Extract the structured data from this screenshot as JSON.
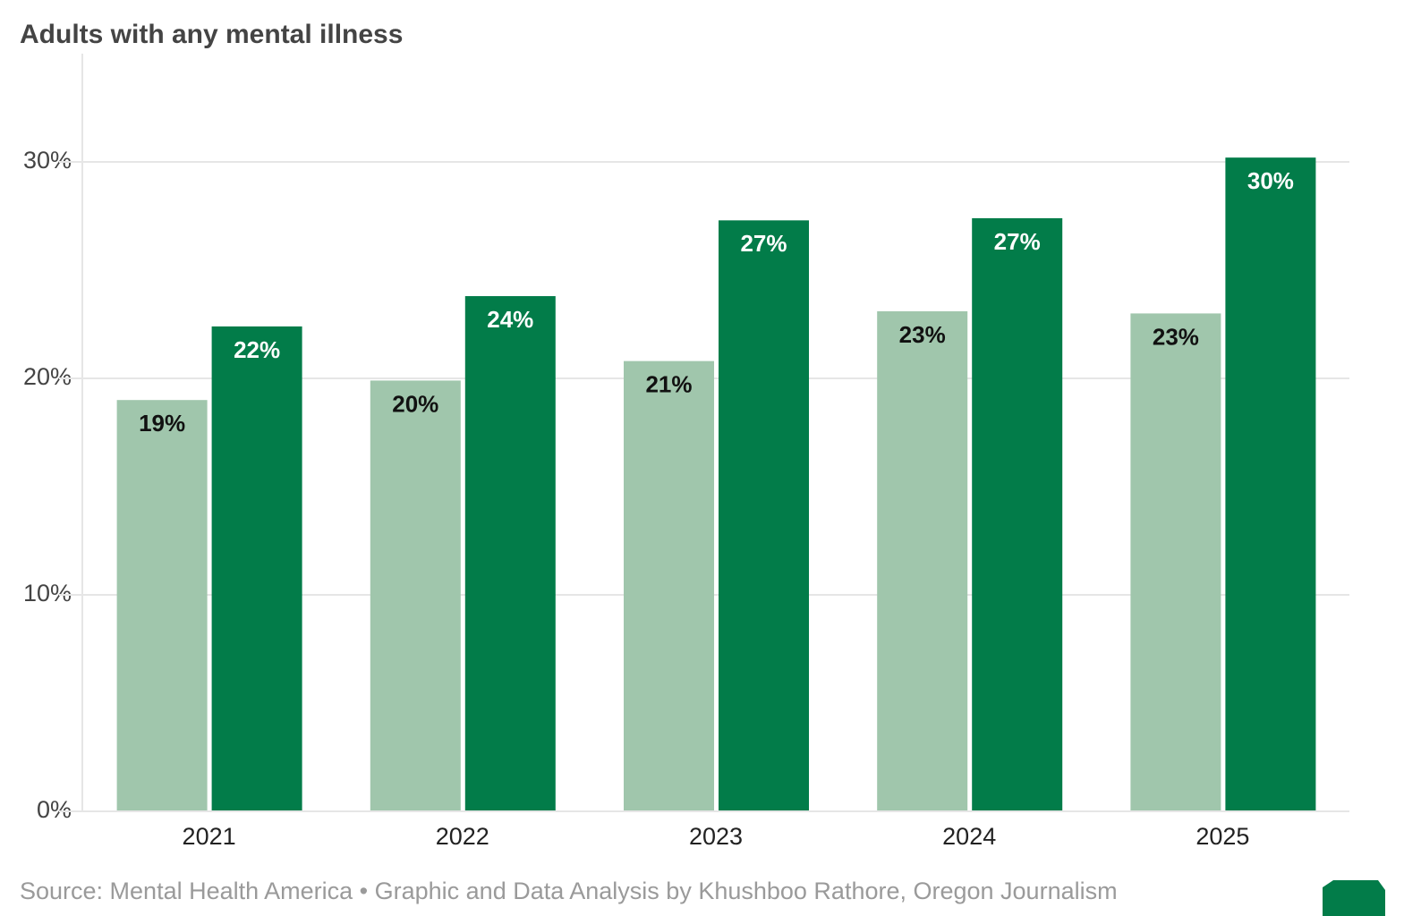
{
  "chart_data": {
    "type": "bar",
    "title": "Adults with any mental illness",
    "source": "Source: Mental Health America • Graphic and Data Analysis by Khushboo Rathore, Oregon Journalism",
    "categories": [
      "2021",
      "2022",
      "2023",
      "2024",
      "2025"
    ],
    "series": [
      {
        "color": "#a0c6ac",
        "values": [
          19.0,
          19.9,
          20.8,
          23.1,
          23.0
        ],
        "value_labels": [
          "19%",
          "20%",
          "21%",
          "23%",
          "23%"
        ]
      },
      {
        "color": "#027c49",
        "values": [
          22.4,
          23.8,
          27.3,
          27.4,
          30.2
        ],
        "value_labels": [
          "22%",
          "24%",
          "27%",
          "27%",
          "30%"
        ]
      }
    ],
    "ylim": [
      0,
      35
    ],
    "yticks": [
      {
        "value": 0,
        "label": "0%"
      },
      {
        "value": 10,
        "label": "10%"
      },
      {
        "value": 20,
        "label": "20%"
      },
      {
        "value": 30,
        "label": "30%"
      }
    ],
    "grid": true
  }
}
